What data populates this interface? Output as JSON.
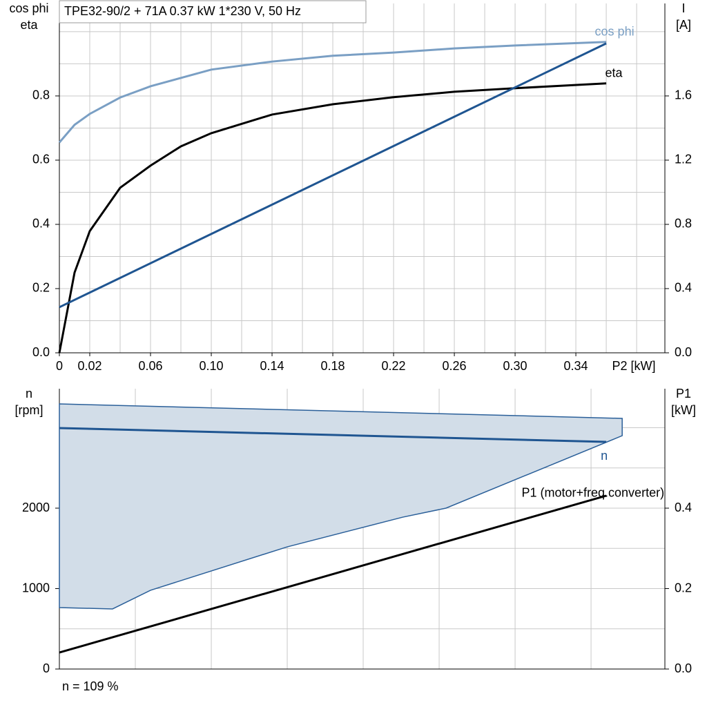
{
  "chart_data": [
    {
      "type": "line",
      "title": "TPE32-90/2 + 71A   0.37 kW   1*230 V, 50 Hz",
      "ylabel": [
        "cos phi",
        "eta"
      ],
      "y2label": [
        "I",
        "[A]"
      ],
      "xlabel": "P2 [kW]",
      "xlim": [
        0,
        0.3986
      ],
      "ylim": [
        0,
        1.088
      ],
      "y2lim": [
        0,
        2.176
      ],
      "xticks": [
        0,
        0.02,
        0.06,
        {
          "value": 0.1,
          "label": "0.10"
        },
        0.14,
        0.18,
        0.22,
        0.26,
        {
          "value": 0.3,
          "label": "0.30"
        },
        0.34
      ],
      "yticks": [
        {
          "value": 0,
          "label": "0.0"
        },
        0.2,
        0.4,
        0.6,
        0.8
      ],
      "y2ticks": [
        {
          "value": 0,
          "label": "0.0"
        },
        0.4,
        0.8,
        1.2,
        1.6
      ],
      "xgrid": [
        0.02,
        0.04,
        0.06,
        0.08,
        0.1,
        0.12,
        0.14,
        0.16,
        0.18,
        0.2,
        0.22,
        0.24,
        0.26,
        0.28,
        0.3,
        0.32,
        0.34,
        0.36,
        0.38
      ],
      "ygrid": [
        0.1,
        0.2,
        0.3,
        0.4,
        0.5,
        0.6,
        0.7,
        0.8,
        0.9,
        1.0
      ],
      "series": [
        {
          "name": "cos phi",
          "color": "#7a9fc4",
          "x": [
            0,
            0.01,
            0.02,
            0.04,
            0.06,
            0.1,
            0.14,
            0.18,
            0.22,
            0.26,
            0.3,
            0.36
          ],
          "values": [
            0.655,
            0.71,
            0.744,
            0.795,
            0.83,
            0.882,
            0.907,
            0.925,
            0.935,
            0.948,
            0.957,
            0.968
          ]
        },
        {
          "name": "eta",
          "color": "#000000",
          "x": [
            0,
            0.01,
            0.02,
            0.04,
            0.06,
            0.08,
            0.1,
            0.14,
            0.18,
            0.22,
            0.26,
            0.3,
            0.36
          ],
          "values": [
            0,
            0.25,
            0.379,
            0.514,
            0.583,
            0.643,
            0.684,
            0.742,
            0.774,
            0.796,
            0.813,
            0.824,
            0.839
          ]
        },
        {
          "name": "I",
          "axis": "y2",
          "color": "#1f5591",
          "x": [
            0,
            0.36
          ],
          "values": [
            0.284,
            1.927
          ]
        }
      ]
    },
    {
      "type": "line",
      "ylabel": [
        "n",
        "[rpm]"
      ],
      "y2label": [
        "P1",
        "[kW]"
      ],
      "xlim": [
        0,
        0.3986
      ],
      "ylim": [
        0,
        3485
      ],
      "y2lim": [
        0,
        0.697
      ],
      "yticks": [
        0,
        1000,
        2000
      ],
      "y2ticks": [
        {
          "value": 0,
          "label": "0.0"
        },
        0.2,
        0.4
      ],
      "xgrid": [
        0.05,
        0.1,
        0.15,
        0.2,
        0.25,
        0.3,
        0.35
      ],
      "ygrid": [
        500,
        1000,
        1500,
        2000,
        2500,
        3000
      ],
      "footer": "n = 109 %",
      "series": [
        {
          "type": "area",
          "color": "#2a5f99",
          "fill": "#d2dde8",
          "x": [
            0,
            0.3705,
            0.3705,
            0.2545,
            0.226,
            0.15,
            0.06,
            0.035,
            0
          ],
          "values": [
            3296,
            3116,
            2901,
            2000,
            1888,
            1519,
            979,
            747,
            764
          ]
        },
        {
          "name": "n",
          "color": "#1f5591",
          "x": [
            0,
            0.36
          ],
          "values": [
            2996,
            2824
          ]
        },
        {
          "name": "P1 (motor+freq.converter)",
          "axis": "y2",
          "color": "#000000",
          "x": [
            0,
            0.36
          ],
          "values": [
            0.041,
            0.431
          ]
        }
      ]
    }
  ]
}
